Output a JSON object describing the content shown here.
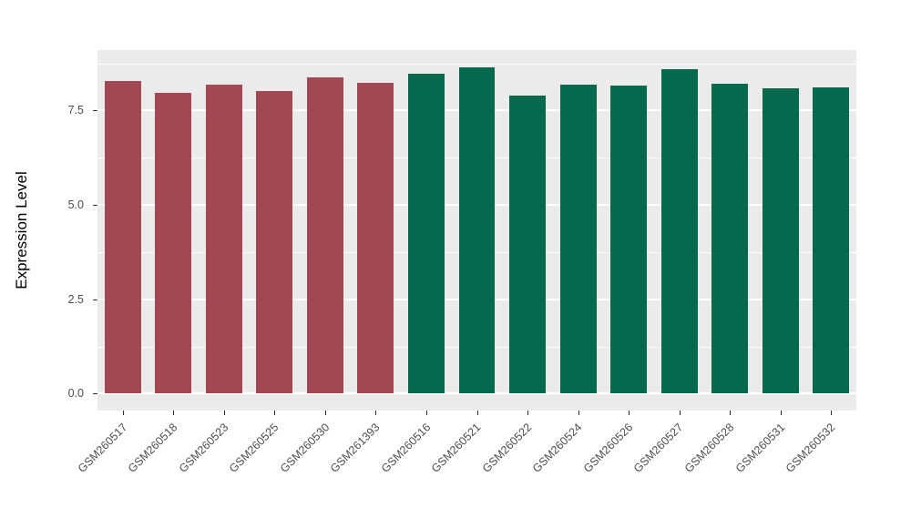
{
  "figure": {
    "background": "#FFFFFF"
  },
  "chart_data": {
    "type": "bar",
    "title": "",
    "xlabel": "",
    "ylabel": "Expression Level",
    "categories": [
      "GSM260517",
      "GSM260518",
      "GSM260523",
      "GSM260525",
      "GSM260530",
      "GSM261393",
      "GSM260516",
      "GSM260521",
      "GSM260522",
      "GSM260524",
      "GSM260526",
      "GSM260527",
      "GSM260528",
      "GSM260531",
      "GSM260532"
    ],
    "values": [
      8.28,
      7.97,
      8.18,
      8.02,
      8.38,
      8.23,
      8.47,
      8.65,
      7.9,
      8.18,
      8.17,
      8.6,
      8.2,
      8.08,
      8.1
    ],
    "bar_groups": [
      0,
      0,
      0,
      0,
      0,
      0,
      1,
      1,
      1,
      1,
      1,
      1,
      1,
      1,
      1
    ],
    "group_colors": [
      "#A24855",
      "#05694D"
    ],
    "ylim": [
      -0.45,
      9.1
    ],
    "yticks": [
      0,
      2.5,
      5,
      7.5
    ],
    "ytick_labels": [
      "0.0",
      "2.5",
      "5.0",
      "7.5"
    ],
    "minor_gridlines": [
      1.25,
      3.75,
      6.25,
      8.75
    ],
    "grid": true,
    "legend_position": "none",
    "panel_background": "#EBEBEB",
    "gridline_color": "#FFFFFF",
    "tick_label_color": "#4D4D4D",
    "axis_title_color": "#000000"
  }
}
